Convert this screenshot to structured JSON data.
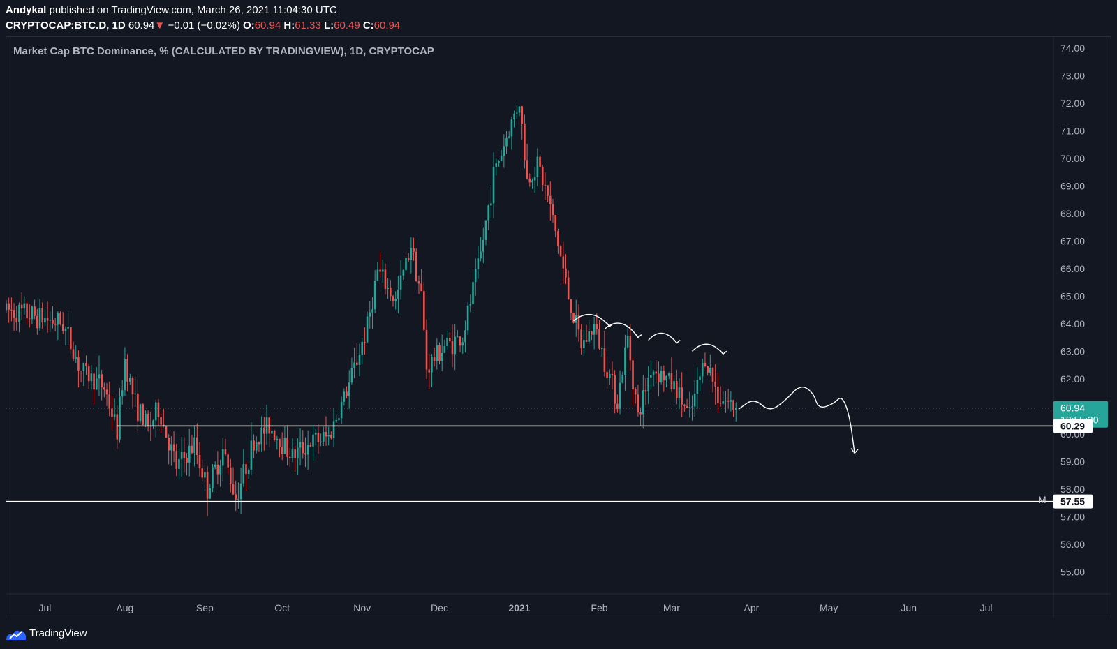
{
  "header": {
    "author": "Andykal",
    "published_text": "published on TradingView.com, March 26, 2021 11:04:30 UTC",
    "symbol": "CRYPTOCAP:BTC.D, 1D",
    "last": "60.94",
    "change_arrow": "▼",
    "change": "−0.01 (−0.02%)",
    "o_label": "O:",
    "o_value": "60.94",
    "h_label": "H:",
    "h_value": "61.33",
    "l_label": "L:",
    "l_value": "60.49",
    "c_label": "C:",
    "c_value": "60.94"
  },
  "footer": {
    "brand": "TradingView"
  },
  "colors": {
    "bg": "#131722",
    "up": "#26a69a",
    "down": "#ef5350",
    "grid": "#2a2e39",
    "text": "#b2b5be",
    "badge": "#26a69a"
  },
  "chart_data": {
    "type": "candlestick",
    "title": "Market Cap BTC Dominance, % (CALCULATED BY TRADINGVIEW), 1D, CRYPTOCAP",
    "ylim": [
      54.2,
      74.4
    ],
    "y_ticks": [
      "74.00",
      "73.00",
      "72.00",
      "71.00",
      "70.00",
      "69.00",
      "68.00",
      "67.00",
      "66.00",
      "65.00",
      "64.00",
      "63.00",
      "62.00",
      "61.00",
      "60.00",
      "59.00",
      "58.00",
      "57.00",
      "56.00",
      "55.00"
    ],
    "x_range": [
      "2020-06-16",
      "2021-07-19"
    ],
    "x_ticks": [
      {
        "label": "Jul",
        "date": "2020-07-01"
      },
      {
        "label": "Aug",
        "date": "2020-08-01"
      },
      {
        "label": "Sep",
        "date": "2020-09-01"
      },
      {
        "label": "Oct",
        "date": "2020-10-01"
      },
      {
        "label": "Nov",
        "date": "2020-11-01"
      },
      {
        "label": "Dec",
        "date": "2020-12-01"
      },
      {
        "label": "2021",
        "date": "2021-01-01"
      },
      {
        "label": "Feb",
        "date": "2021-02-01"
      },
      {
        "label": "Mar",
        "date": "2021-03-01"
      },
      {
        "label": "Apr",
        "date": "2021-04-01"
      },
      {
        "label": "May",
        "date": "2021-05-01"
      },
      {
        "label": "Jun",
        "date": "2021-06-01"
      },
      {
        "label": "Jul",
        "date": "2021-07-01"
      }
    ],
    "close_anchors": [
      {
        "date": "2020-06-16",
        "close": 64.5
      },
      {
        "date": "2020-06-26",
        "close": 64.3
      },
      {
        "date": "2020-07-08",
        "close": 64.0
      },
      {
        "date": "2020-07-15",
        "close": 62.3
      },
      {
        "date": "2020-07-24",
        "close": 61.7
      },
      {
        "date": "2020-07-29",
        "close": 60.1
      },
      {
        "date": "2020-08-01",
        "close": 62.7
      },
      {
        "date": "2020-08-05",
        "close": 61.1
      },
      {
        "date": "2020-08-10",
        "close": 60.2
      },
      {
        "date": "2020-08-14",
        "close": 60.9
      },
      {
        "date": "2020-08-21",
        "close": 58.8
      },
      {
        "date": "2020-08-28",
        "close": 59.6
      },
      {
        "date": "2020-09-02",
        "close": 58.0
      },
      {
        "date": "2020-09-08",
        "close": 59.4
      },
      {
        "date": "2020-09-13",
        "close": 57.7
      },
      {
        "date": "2020-09-20",
        "close": 59.7
      },
      {
        "date": "2020-09-26",
        "close": 60.3
      },
      {
        "date": "2020-10-05",
        "close": 59.2
      },
      {
        "date": "2020-10-12",
        "close": 59.7
      },
      {
        "date": "2020-10-19",
        "close": 59.9
      },
      {
        "date": "2020-10-27",
        "close": 61.8
      },
      {
        "date": "2020-11-03",
        "close": 63.9
      },
      {
        "date": "2020-11-07",
        "close": 65.9
      },
      {
        "date": "2020-11-14",
        "close": 64.8
      },
      {
        "date": "2020-11-20",
        "close": 66.9
      },
      {
        "date": "2020-11-24",
        "close": 65.0
      },
      {
        "date": "2020-11-26",
        "close": 62.4
      },
      {
        "date": "2020-12-03",
        "close": 63.2
      },
      {
        "date": "2020-12-10",
        "close": 63.5
      },
      {
        "date": "2020-12-17",
        "close": 66.5
      },
      {
        "date": "2020-12-22",
        "close": 69.4
      },
      {
        "date": "2020-12-26",
        "close": 70.5
      },
      {
        "date": "2021-01-01",
        "close": 72.1
      },
      {
        "date": "2021-01-04",
        "close": 69.2
      },
      {
        "date": "2021-01-08",
        "close": 69.8
      },
      {
        "date": "2021-01-12",
        "close": 68.6
      },
      {
        "date": "2021-01-16",
        "close": 66.9
      },
      {
        "date": "2021-01-20",
        "close": 65.0
      },
      {
        "date": "2021-01-25",
        "close": 63.2
      },
      {
        "date": "2021-01-30",
        "close": 63.9
      },
      {
        "date": "2021-02-04",
        "close": 62.4
      },
      {
        "date": "2021-02-08",
        "close": 61.2
      },
      {
        "date": "2021-02-12",
        "close": 63.5
      },
      {
        "date": "2021-02-16",
        "close": 60.6
      },
      {
        "date": "2021-02-21",
        "close": 62.4
      },
      {
        "date": "2021-02-26",
        "close": 62.1
      },
      {
        "date": "2021-03-03",
        "close": 61.6
      },
      {
        "date": "2021-03-08",
        "close": 60.6
      },
      {
        "date": "2021-03-14",
        "close": 62.8
      },
      {
        "date": "2021-03-19",
        "close": 61.4
      },
      {
        "date": "2021-03-26",
        "close": 60.94
      }
    ],
    "horizontal_lines": [
      {
        "value": 60.29,
        "label": "60.29"
      },
      {
        "value": 57.55,
        "label": "57.55"
      }
    ],
    "last_price": {
      "value": 60.94,
      "label": "60.94",
      "countdown": "12:55:30"
    },
    "scale_mode_label": "M"
  }
}
